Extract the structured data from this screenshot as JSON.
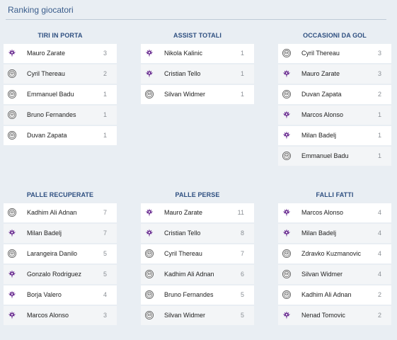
{
  "header": {
    "title": "Ranking giocatori"
  },
  "panels": [
    {
      "title": "TIRI IN PORTA",
      "rows": [
        {
          "team": "fiorentina",
          "name": "Mauro Zarate",
          "value": "3"
        },
        {
          "team": "udinese",
          "name": "Cyril Thereau",
          "value": "2"
        },
        {
          "team": "udinese",
          "name": "Emmanuel Badu",
          "value": "1"
        },
        {
          "team": "udinese",
          "name": "Bruno Fernandes",
          "value": "1"
        },
        {
          "team": "udinese",
          "name": "Duvan Zapata",
          "value": "1"
        }
      ]
    },
    {
      "title": "ASSIST TOTALI",
      "rows": [
        {
          "team": "fiorentina",
          "name": "Nikola Kalinic",
          "value": "1"
        },
        {
          "team": "fiorentina",
          "name": "Cristian Tello",
          "value": "1"
        },
        {
          "team": "udinese",
          "name": "Silvan Widmer",
          "value": "1"
        }
      ]
    },
    {
      "title": "OCCASIONI DA GOL",
      "rows": [
        {
          "team": "udinese",
          "name": "Cyril Thereau",
          "value": "3"
        },
        {
          "team": "fiorentina",
          "name": "Mauro Zarate",
          "value": "3"
        },
        {
          "team": "udinese",
          "name": "Duvan Zapata",
          "value": "2"
        },
        {
          "team": "fiorentina",
          "name": "Marcos Alonso",
          "value": "1"
        },
        {
          "team": "fiorentina",
          "name": "Milan Badelj",
          "value": "1"
        },
        {
          "team": "udinese",
          "name": "Emmanuel Badu",
          "value": "1"
        }
      ]
    },
    {
      "title": "PALLE RECUPERATE",
      "rows": [
        {
          "team": "udinese",
          "name": "Kadhim Ali Adnan",
          "value": "7"
        },
        {
          "team": "fiorentina",
          "name": "Milan Badelj",
          "value": "7"
        },
        {
          "team": "udinese",
          "name": "Larangeira Danilo",
          "value": "5"
        },
        {
          "team": "fiorentina",
          "name": "Gonzalo Rodriguez",
          "value": "5"
        },
        {
          "team": "fiorentina",
          "name": "Borja Valero",
          "value": "4"
        },
        {
          "team": "fiorentina",
          "name": "Marcos Alonso",
          "value": "3"
        }
      ]
    },
    {
      "title": "PALLE PERSE",
      "rows": [
        {
          "team": "fiorentina",
          "name": "Mauro Zarate",
          "value": "11"
        },
        {
          "team": "fiorentina",
          "name": "Cristian Tello",
          "value": "8"
        },
        {
          "team": "udinese",
          "name": "Cyril Thereau",
          "value": "7"
        },
        {
          "team": "udinese",
          "name": "Kadhim Ali Adnan",
          "value": "6"
        },
        {
          "team": "udinese",
          "name": "Bruno Fernandes",
          "value": "5"
        },
        {
          "team": "udinese",
          "name": "Silvan Widmer",
          "value": "5"
        }
      ]
    },
    {
      "title": "FALLI FATTI",
      "rows": [
        {
          "team": "fiorentina",
          "name": "Marcos Alonso",
          "value": "4"
        },
        {
          "team": "fiorentina",
          "name": "Milan Badelj",
          "value": "4"
        },
        {
          "team": "udinese",
          "name": "Zdravko Kuzmanovic",
          "value": "4"
        },
        {
          "team": "udinese",
          "name": "Silvan Widmer",
          "value": "4"
        },
        {
          "team": "udinese",
          "name": "Kadhim Ali Adnan",
          "value": "2"
        },
        {
          "team": "fiorentina",
          "name": "Nenad Tomovic",
          "value": "2"
        }
      ]
    }
  ],
  "crest_icons": {
    "fiorentina": "fiorentina-crest-icon",
    "udinese": "udinese-crest-icon"
  },
  "colors": {
    "title": "#2e4f80",
    "fiorentina": "#6a2c91",
    "udinese": "#5b5b5b"
  }
}
